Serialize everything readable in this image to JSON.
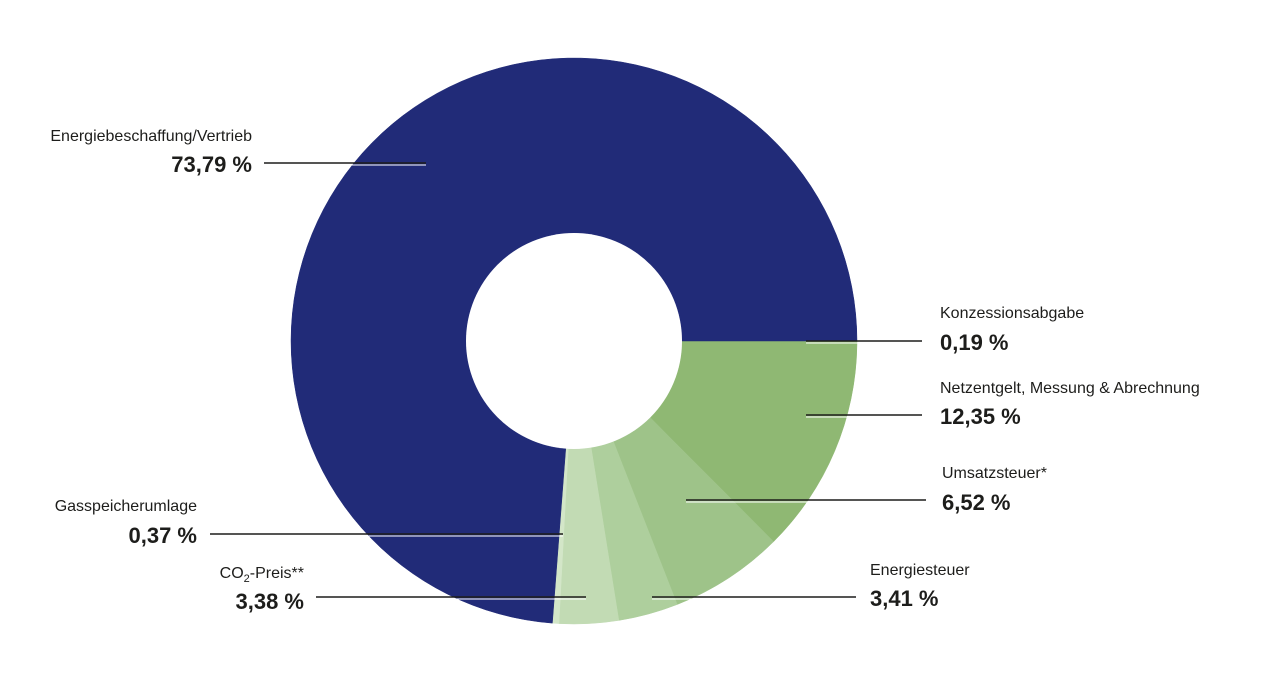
{
  "chart_data": {
    "type": "pie",
    "title": "",
    "colors": {
      "main": "#212b78",
      "green1": "#8fb873",
      "green2": "#9ec389",
      "green3": "#aecf9d",
      "green4": "#c2dbb4",
      "green5": "#d3e6c8"
    },
    "slices": [
      {
        "name": "Energiebeschaffung/Vertrieb",
        "value": 73.79,
        "value_label": "73,79 %",
        "color": "#212b78"
      },
      {
        "name": "Konzessionsabgabe",
        "value": 0.19,
        "value_label": "0,19 %",
        "color": "#8fb873"
      },
      {
        "name": "Netzentgelt, Messung & Abrechnung",
        "value": 12.35,
        "value_label": "12,35 %",
        "color": "#8fb873"
      },
      {
        "name": "Umsatzsteuer*",
        "value": 6.52,
        "value_label": "6,52 %",
        "color": "#9ec389"
      },
      {
        "name": "Energiesteuer",
        "value": 3.41,
        "value_label": "3,41 %",
        "color": "#aecf9d"
      },
      {
        "name": "CO2-Preis**",
        "name_main": "CO",
        "name_sub": "2",
        "name_rest": "-Preis**",
        "value": 3.38,
        "value_label": "3,38 %",
        "color": "#c2dbb4"
      },
      {
        "name": "Gasspeicherumlage",
        "value": 0.37,
        "value_label": "0,37 %",
        "color": "#d3e6c8"
      }
    ]
  }
}
